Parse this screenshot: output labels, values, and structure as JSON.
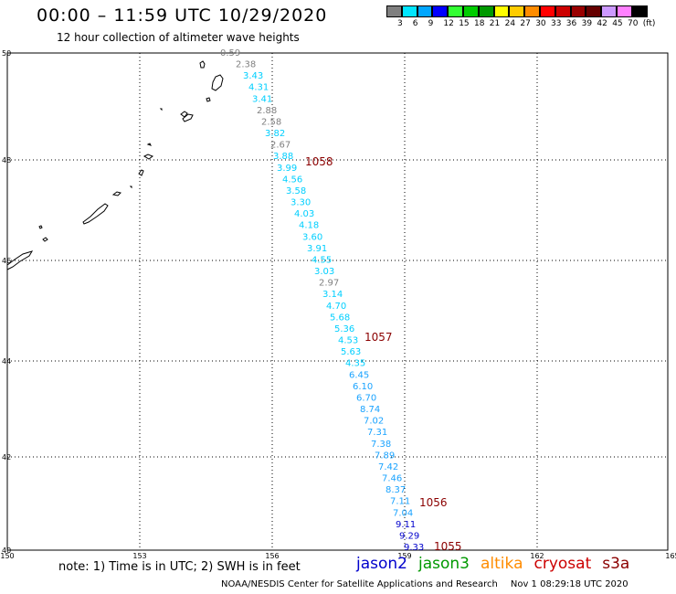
{
  "title": "00:00 – 11:59 UTC 10/29/2020",
  "subtitle": "12 hour collection of altimeter wave heights",
  "colorbar": {
    "colors": [
      "#7f7f7f",
      "#00e5ff",
      "#00a6ff",
      "#0000ff",
      "#33ff33",
      "#00cc00",
      "#009900",
      "#ffff00",
      "#ffcc00",
      "#ff8c00",
      "#ff0000",
      "#cc0000",
      "#990000",
      "#660000",
      "#cc99ff",
      "#ff80ff",
      "#000000"
    ],
    "labels": [
      "3",
      "6",
      "9",
      "12",
      "15",
      "18",
      "21",
      "24",
      "27",
      "30",
      "33",
      "36",
      "39",
      "42",
      "45",
      "70",
      "(ft)"
    ]
  },
  "axes": {
    "lon_ticks": [
      "150",
      "153",
      "156",
      "159",
      "162",
      "165"
    ],
    "lat_ticks": [
      "50",
      "48",
      "46",
      "44",
      "42",
      "40"
    ]
  },
  "track": {
    "points": [
      {
        "value": "0.59",
        "color": "#808080"
      },
      {
        "value": "2.38",
        "color": "#808080"
      },
      {
        "value": "3.43",
        "color": "#00cfff"
      },
      {
        "value": "4.31",
        "color": "#00cfff"
      },
      {
        "value": "3.41",
        "color": "#00cfff"
      },
      {
        "value": "2.88",
        "color": "#808080"
      },
      {
        "value": "2.58",
        "color": "#808080"
      },
      {
        "value": "3.82",
        "color": "#00cfff"
      },
      {
        "value": "2.67",
        "color": "#808080"
      },
      {
        "value": "3.88",
        "color": "#00cfff"
      },
      {
        "value": "3.99",
        "color": "#00cfff"
      },
      {
        "value": "4.56",
        "color": "#00cfff"
      },
      {
        "value": "3.58",
        "color": "#00cfff"
      },
      {
        "value": "3.30",
        "color": "#00cfff"
      },
      {
        "value": "4.03",
        "color": "#00cfff"
      },
      {
        "value": "4.18",
        "color": "#00cfff"
      },
      {
        "value": "3.60",
        "color": "#00cfff"
      },
      {
        "value": "3.91",
        "color": "#00cfff"
      },
      {
        "value": "4.55",
        "color": "#00cfff"
      },
      {
        "value": "3.03",
        "color": "#00cfff"
      },
      {
        "value": "2.97",
        "color": "#808080"
      },
      {
        "value": "3.14",
        "color": "#00cfff"
      },
      {
        "value": "4.70",
        "color": "#00cfff"
      },
      {
        "value": "5.68",
        "color": "#00cfff"
      },
      {
        "value": "5.36",
        "color": "#00cfff"
      },
      {
        "value": "4.53",
        "color": "#00cfff"
      },
      {
        "value": "5.63",
        "color": "#00cfff"
      },
      {
        "value": "4.35",
        "color": "#00cfff"
      },
      {
        "value": "6.45",
        "color": "#1aa3ff"
      },
      {
        "value": "6.10",
        "color": "#1aa3ff"
      },
      {
        "value": "6.70",
        "color": "#1aa3ff"
      },
      {
        "value": "8.74",
        "color": "#1aa3ff"
      },
      {
        "value": "7.02",
        "color": "#1aa3ff"
      },
      {
        "value": "7.31",
        "color": "#1aa3ff"
      },
      {
        "value": "7.38",
        "color": "#1aa3ff"
      },
      {
        "value": "7.89",
        "color": "#1aa3ff"
      },
      {
        "value": "7.42",
        "color": "#1aa3ff"
      },
      {
        "value": "7.46",
        "color": "#1aa3ff"
      },
      {
        "value": "8.37",
        "color": "#1aa3ff"
      },
      {
        "value": "7.11",
        "color": "#1aa3ff"
      },
      {
        "value": "7.04",
        "color": "#1aa3ff"
      },
      {
        "value": "9.11",
        "color": "#0000cc"
      },
      {
        "value": "9.29",
        "color": "#0000cc"
      },
      {
        "value": "9.33",
        "color": "#0000cc"
      }
    ],
    "time_labels": [
      {
        "text": "1058",
        "color": "#8b0000"
      },
      {
        "text": "1057",
        "color": "#8b0000"
      },
      {
        "text": "1056",
        "color": "#8b0000"
      },
      {
        "text": "1055",
        "color": "#8b0000"
      }
    ]
  },
  "footer": {
    "note": "note: 1) Time is in UTC; 2) SWH is in feet",
    "satellites": [
      {
        "name": "jason2",
        "color": "#0000cc"
      },
      {
        "name": "jason3",
        "color": "#009900"
      },
      {
        "name": "altika",
        "color": "#ff8c00"
      },
      {
        "name": "cryosat",
        "color": "#cc0000"
      },
      {
        "name": "s3a",
        "color": "#8b0000"
      }
    ],
    "credit": "NOAA/NESDIS Center for Satellite Applications and Research",
    "timestamp": "Nov  1 08:29:18 UTC 2020"
  }
}
